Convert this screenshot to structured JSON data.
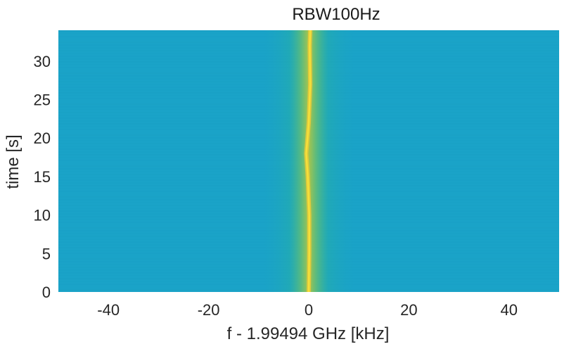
{
  "chart_data": {
    "type": "heatmap",
    "title": "RBW100Hz",
    "xlabel": "f - 1.99494 GHz [kHz]",
    "ylabel": "time [s]",
    "xlim": [
      -50,
      50
    ],
    "ylim": [
      0,
      34
    ],
    "xticks": [
      -40,
      -20,
      0,
      20,
      40
    ],
    "xtick_labels": [
      "-40",
      "-20",
      "0",
      "20",
      "40"
    ],
    "yticks": [
      0,
      5,
      10,
      15,
      20,
      25,
      30
    ],
    "ytick_labels": [
      "0",
      "5",
      "10",
      "15",
      "20",
      "25",
      "30"
    ],
    "grid": false,
    "colormap": "parula",
    "background_color": "#1aa3c8",
    "peak_color": "#f5e03a",
    "signal_center_khz": 0,
    "signal_drift_khz": [
      {
        "t": 0,
        "f": 0.0
      },
      {
        "t": 5,
        "f": 0.1
      },
      {
        "t": 10,
        "f": 0.1
      },
      {
        "t": 15,
        "f": -0.2
      },
      {
        "t": 18,
        "f": -0.5
      },
      {
        "t": 22,
        "f": 0.0
      },
      {
        "t": 27,
        "f": 0.3
      },
      {
        "t": 32,
        "f": 0.2
      },
      {
        "t": 34,
        "f": 0.3
      }
    ]
  }
}
